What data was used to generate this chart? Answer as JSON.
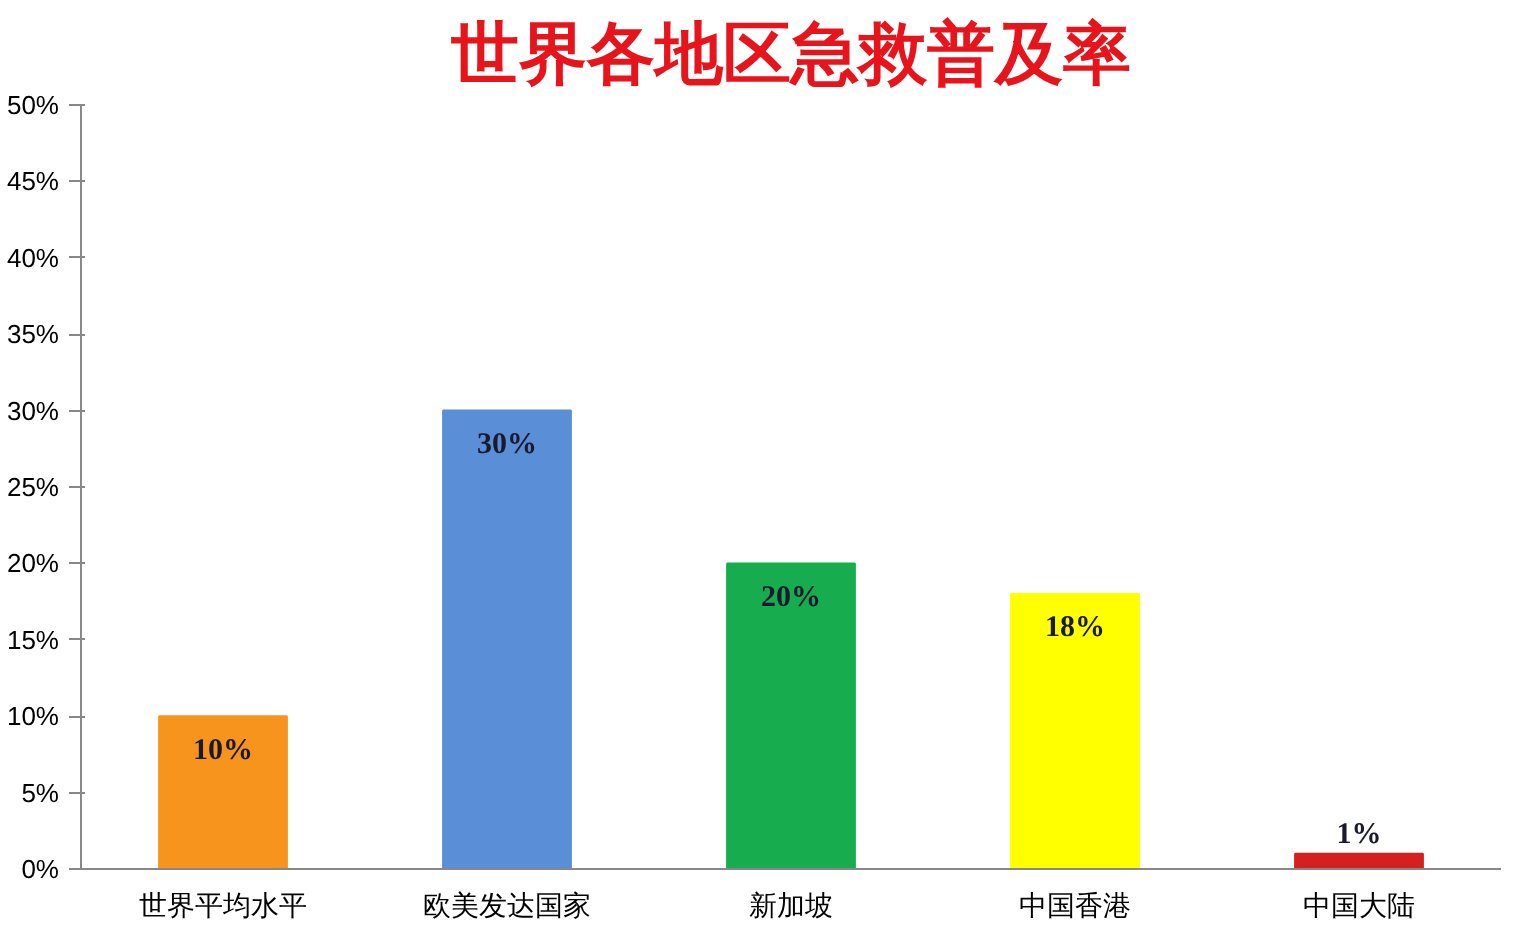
{
  "chart_data": {
    "type": "bar",
    "title": "世界各地区急救普及率",
    "categories": [
      "世界平均水平",
      "欧美发达国家",
      "新加坡",
      "中国香港",
      "中国大陆"
    ],
    "values": [
      10,
      30,
      20,
      18,
      1
    ],
    "colors": [
      "#f7941d",
      "#5a8ed6",
      "#17ad4f",
      "#ffff00",
      "#d42020"
    ],
    "value_labels": [
      "10%",
      "30%",
      "20%",
      "18%",
      "1%"
    ],
    "ylim": [
      0,
      50
    ],
    "yticks": [
      {
        "value": 0,
        "label": "0%"
      },
      {
        "value": 5,
        "label": "5%"
      },
      {
        "value": 10,
        "label": "10%"
      },
      {
        "value": 15,
        "label": "15%"
      },
      {
        "value": 20,
        "label": "20%"
      },
      {
        "value": 25,
        "label": "25%"
      },
      {
        "value": 30,
        "label": "30%"
      },
      {
        "value": 35,
        "label": "35%"
      },
      {
        "value": 40,
        "label": "40%"
      },
      {
        "value": 45,
        "label": "45%"
      },
      {
        "value": 50,
        "label": "50%"
      }
    ],
    "grid": false
  }
}
